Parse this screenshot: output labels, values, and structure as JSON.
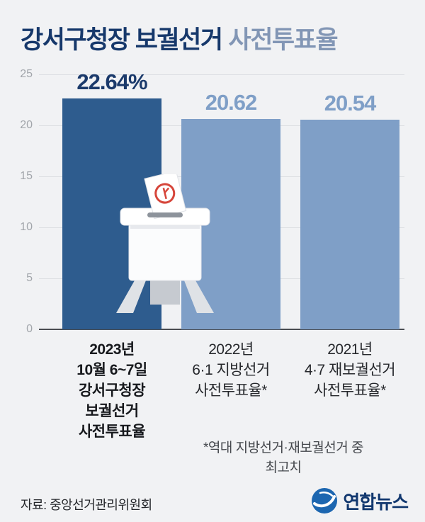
{
  "title": {
    "main": "강서구청장 보궐선거",
    "sub": "사전투표율"
  },
  "chart_data": {
    "type": "bar",
    "title": "강서구청장 보궐선거 사전투표율",
    "values": [
      22.64,
      20.62,
      20.54
    ],
    "value_labels": [
      "22.64%",
      "20.62",
      "20.54"
    ],
    "value_colors": [
      "#1b3a6b",
      "#7f9fc7",
      "#7f9fc7"
    ],
    "bar_colors": [
      "#2e5c8e",
      "#7f9fc7",
      "#7f9fc7"
    ],
    "ylim": [
      0,
      25
    ],
    "yticks": [
      25,
      20,
      15,
      10,
      5,
      0
    ],
    "grid": true,
    "legend_position": "none",
    "categories": [
      {
        "lines": [
          "2023년",
          "10월 6~7일",
          "강서구청장",
          "보궐선거",
          "사전투표율"
        ]
      },
      {
        "lines": [
          "2022년",
          "6·1 지방선거",
          "사전투표율*"
        ]
      },
      {
        "lines": [
          "2021년",
          "4·7 재보궐선거",
          "사전투표율*"
        ]
      }
    ]
  },
  "footnote": {
    "line1": "*역대 지방선거·재보궐선거 중",
    "line2": "최고치"
  },
  "source": "자료: 중앙선거관리위원회",
  "logo": {
    "name": "연합뉴스"
  }
}
